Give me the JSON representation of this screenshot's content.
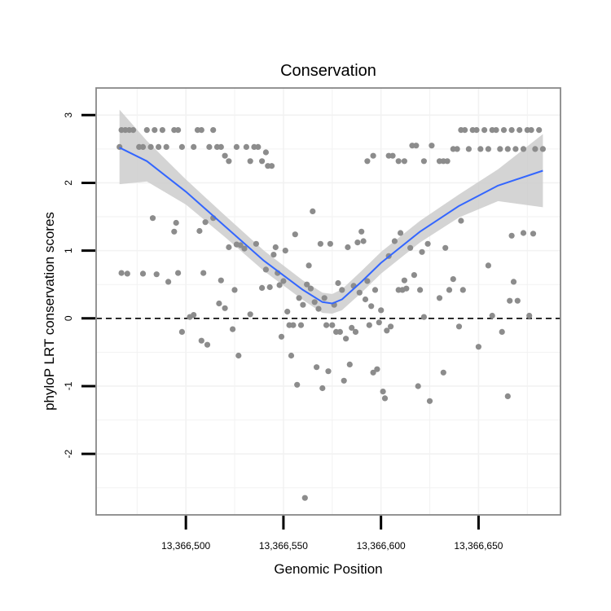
{
  "chart_data": {
    "type": "scatter",
    "title": "Conservation",
    "xlabel": "Genomic Position",
    "ylabel": "phyloP LRT conservation scores",
    "xlim": [
      13366454,
      13366692
    ],
    "ylim": [
      -2.9,
      3.4
    ],
    "x_ticks": [
      13366500,
      13366550,
      13366600,
      13366650
    ],
    "x_tick_labels": [
      "13,366,500",
      "13,366,550",
      "13,366,600",
      "13,366,650"
    ],
    "y_ticks": [
      -2,
      -1,
      0,
      1,
      2,
      3
    ],
    "y_tick_labels": [
      "-2",
      "-1",
      "0",
      "1",
      "2",
      "3"
    ],
    "reference_line": {
      "y": 0,
      "style": "dashed"
    },
    "colors": {
      "points": "#8c8c8c",
      "smooth_line": "#3366ff",
      "confidence_band": "#cccccc",
      "reference_line": "#000000",
      "panel_border": "#888888",
      "grid": "#f2f2f2"
    },
    "series": [
      {
        "name": "scores",
        "kind": "points",
        "points": [
          [
            13366466,
            2.53
          ],
          [
            13366467,
            2.78
          ],
          [
            13366469,
            2.78
          ],
          [
            13366471,
            2.78
          ],
          [
            13366473,
            2.78
          ],
          [
            13366476,
            2.53
          ],
          [
            13366478,
            2.53
          ],
          [
            13366480,
            2.78
          ],
          [
            13366482,
            2.53
          ],
          [
            13366484,
            2.78
          ],
          [
            13366486,
            2.53
          ],
          [
            13366488,
            2.78
          ],
          [
            13366490,
            2.53
          ],
          [
            13366494,
            2.78
          ],
          [
            13366496,
            2.78
          ],
          [
            13366498,
            2.53
          ],
          [
            13366504,
            2.53
          ],
          [
            13366506,
            2.78
          ],
          [
            13366508,
            2.78
          ],
          [
            13366512,
            2.53
          ],
          [
            13366514,
            2.78
          ],
          [
            13366516,
            2.53
          ],
          [
            13366518,
            2.53
          ],
          [
            13366520,
            2.4
          ],
          [
            13366522,
            2.32
          ],
          [
            13366526,
            2.53
          ],
          [
            13366531,
            2.53
          ],
          [
            13366533,
            2.32
          ],
          [
            13366535,
            2.53
          ],
          [
            13366537,
            2.53
          ],
          [
            13366539,
            2.32
          ],
          [
            13366541,
            2.45
          ],
          [
            13366542,
            2.25
          ],
          [
            13366544,
            2.25
          ],
          [
            13366467,
            0.67
          ],
          [
            13366470,
            0.66
          ],
          [
            13366478,
            0.66
          ],
          [
            13366483,
            1.48
          ],
          [
            13366485,
            0.65
          ],
          [
            13366491,
            0.54
          ],
          [
            13366494,
            1.28
          ],
          [
            13366495,
            1.41
          ],
          [
            13366496,
            0.67
          ],
          [
            13366498,
            -0.2
          ],
          [
            13366502,
            0.02
          ],
          [
            13366504,
            0.05
          ],
          [
            13366507,
            1.29
          ],
          [
            13366508,
            -0.33
          ],
          [
            13366509,
            0.67
          ],
          [
            13366510,
            1.42
          ],
          [
            13366511,
            -0.39
          ],
          [
            13366514,
            1.48
          ],
          [
            13366517,
            0.22
          ],
          [
            13366518,
            0.56
          ],
          [
            13366520,
            0.15
          ],
          [
            13366522,
            1.05
          ],
          [
            13366524,
            -0.16
          ],
          [
            13366525,
            0.42
          ],
          [
            13366526,
            1.09
          ],
          [
            13366527,
            -0.55
          ],
          [
            13366528,
            1.08
          ],
          [
            13366530,
            1.03
          ],
          [
            13366533,
            0.06
          ],
          [
            13366536,
            1.1
          ],
          [
            13366539,
            0.45
          ],
          [
            13366541,
            0.72
          ],
          [
            13366543,
            0.46
          ],
          [
            13366545,
            0.94
          ],
          [
            13366546,
            1.05
          ],
          [
            13366547,
            0.67
          ],
          [
            13366548,
            0.49
          ],
          [
            13366549,
            -0.27
          ],
          [
            13366550,
            0.55
          ],
          [
            13366551,
            1.0
          ],
          [
            13366552,
            0.1
          ],
          [
            13366553,
            -0.1
          ],
          [
            13366554,
            -0.55
          ],
          [
            13366555,
            -0.1
          ],
          [
            13366556,
            1.24
          ],
          [
            13366557,
            -0.98
          ],
          [
            13366558,
            0.3
          ],
          [
            13366559,
            -0.1
          ],
          [
            13366560,
            0.2
          ],
          [
            13366561,
            -2.65
          ],
          [
            13366562,
            0.5
          ],
          [
            13366563,
            0.78
          ],
          [
            13366564,
            0.44
          ],
          [
            13366565,
            1.58
          ],
          [
            13366566,
            0.24
          ],
          [
            13366567,
            -0.72
          ],
          [
            13366568,
            0.14
          ],
          [
            13366569,
            1.1
          ],
          [
            13366570,
            -1.03
          ],
          [
            13366571,
            0.3
          ],
          [
            13366572,
            -0.1
          ],
          [
            13366573,
            -0.78
          ],
          [
            13366574,
            1.1
          ],
          [
            13366575,
            -0.1
          ],
          [
            13366576,
            0.2
          ],
          [
            13366577,
            -0.2
          ],
          [
            13366578,
            0.52
          ],
          [
            13366579,
            -0.2
          ],
          [
            13366580,
            0.42
          ],
          [
            13366581,
            -0.92
          ],
          [
            13366582,
            -0.3
          ],
          [
            13366583,
            1.05
          ],
          [
            13366584,
            -0.68
          ],
          [
            13366585,
            -0.14
          ],
          [
            13366586,
            0.48
          ],
          [
            13366587,
            -0.2
          ],
          [
            13366588,
            1.12
          ],
          [
            13366589,
            0.38
          ],
          [
            13366590,
            1.28
          ],
          [
            13366591,
            1.14
          ],
          [
            13366592,
            0.28
          ],
          [
            13366593,
            0.55
          ],
          [
            13366594,
            -0.1
          ],
          [
            13366595,
            0.18
          ],
          [
            13366596,
            -0.8
          ],
          [
            13366597,
            0.42
          ],
          [
            13366598,
            -0.75
          ],
          [
            13366599,
            -0.06
          ],
          [
            13366600,
            0.12
          ],
          [
            13366601,
            -1.08
          ],
          [
            13366602,
            -1.18
          ],
          [
            13366603,
            -0.18
          ],
          [
            13366604,
            0.92
          ],
          [
            13366605,
            -0.12
          ],
          [
            13366607,
            1.14
          ],
          [
            13366609,
            0.42
          ],
          [
            13366610,
            1.26
          ],
          [
            13366611,
            0.42
          ],
          [
            13366612,
            0.56
          ],
          [
            13366613,
            0.44
          ],
          [
            13366615,
            1.04
          ],
          [
            13366617,
            0.64
          ],
          [
            13366619,
            -1.0
          ],
          [
            13366620,
            0.42
          ],
          [
            13366621,
            0.98
          ],
          [
            13366622,
            0.02
          ],
          [
            13366624,
            1.1
          ],
          [
            13366625,
            -1.22
          ],
          [
            13366630,
            0.3
          ],
          [
            13366632,
            -0.8
          ],
          [
            13366633,
            1.04
          ],
          [
            13366635,
            0.42
          ],
          [
            13366637,
            0.58
          ],
          [
            13366640,
            -0.12
          ],
          [
            13366641,
            1.44
          ],
          [
            13366642,
            0.42
          ],
          [
            13366650,
            -0.42
          ],
          [
            13366655,
            0.78
          ],
          [
            13366657,
            0.04
          ],
          [
            13366662,
            -0.2
          ],
          [
            13366665,
            -1.15
          ],
          [
            13366666,
            0.26
          ],
          [
            13366667,
            1.22
          ],
          [
            13366668,
            0.54
          ],
          [
            13366670,
            0.26
          ],
          [
            13366673,
            1.26
          ],
          [
            13366676,
            0.04
          ],
          [
            13366678,
            1.25
          ],
          [
            13366593,
            2.32
          ],
          [
            13366596,
            2.4
          ],
          [
            13366604,
            2.4
          ],
          [
            13366606,
            2.4
          ],
          [
            13366609,
            2.32
          ],
          [
            13366612,
            2.32
          ],
          [
            13366616,
            2.55
          ],
          [
            13366618,
            2.55
          ],
          [
            13366622,
            2.32
          ],
          [
            13366626,
            2.55
          ],
          [
            13366630,
            2.32
          ],
          [
            13366632,
            2.32
          ],
          [
            13366634,
            2.32
          ],
          [
            13366637,
            2.5
          ],
          [
            13366639,
            2.5
          ],
          [
            13366641,
            2.78
          ],
          [
            13366643,
            2.78
          ],
          [
            13366645,
            2.5
          ],
          [
            13366647,
            2.78
          ],
          [
            13366649,
            2.78
          ],
          [
            13366651,
            2.5
          ],
          [
            13366653,
            2.78
          ],
          [
            13366655,
            2.5
          ],
          [
            13366657,
            2.78
          ],
          [
            13366659,
            2.78
          ],
          [
            13366661,
            2.5
          ],
          [
            13366663,
            2.78
          ],
          [
            13366665,
            2.5
          ],
          [
            13366667,
            2.78
          ],
          [
            13366669,
            2.5
          ],
          [
            13366671,
            2.78
          ],
          [
            13366673,
            2.5
          ],
          [
            13366675,
            2.78
          ],
          [
            13366677,
            2.78
          ],
          [
            13366679,
            2.5
          ],
          [
            13366681,
            2.78
          ],
          [
            13366683,
            2.5
          ]
        ]
      },
      {
        "name": "loess fit",
        "kind": "line",
        "points": [
          [
            13366466,
            2.52
          ],
          [
            13366480,
            2.32
          ],
          [
            13366500,
            1.87
          ],
          [
            13366520,
            1.36
          ],
          [
            13366540,
            0.85
          ],
          [
            13366560,
            0.42
          ],
          [
            13366570,
            0.24
          ],
          [
            13366575,
            0.22
          ],
          [
            13366580,
            0.28
          ],
          [
            13366590,
            0.54
          ],
          [
            13366600,
            0.82
          ],
          [
            13366620,
            1.28
          ],
          [
            13366640,
            1.66
          ],
          [
            13366660,
            1.96
          ],
          [
            13366683,
            2.18
          ]
        ]
      },
      {
        "name": "95% confidence band",
        "kind": "band",
        "upper": [
          [
            13366466,
            3.08
          ],
          [
            13366480,
            2.62
          ],
          [
            13366500,
            2.05
          ],
          [
            13366520,
            1.52
          ],
          [
            13366540,
            1.0
          ],
          [
            13366560,
            0.56
          ],
          [
            13366570,
            0.38
          ],
          [
            13366575,
            0.36
          ],
          [
            13366580,
            0.43
          ],
          [
            13366590,
            0.7
          ],
          [
            13366600,
            0.98
          ],
          [
            13366620,
            1.44
          ],
          [
            13366640,
            1.83
          ],
          [
            13366660,
            2.2
          ],
          [
            13366683,
            2.72
          ]
        ],
        "lower": [
          [
            13366466,
            1.98
          ],
          [
            13366480,
            2.02
          ],
          [
            13366500,
            1.68
          ],
          [
            13366520,
            1.2
          ],
          [
            13366540,
            0.7
          ],
          [
            13366560,
            0.27
          ],
          [
            13366570,
            0.08
          ],
          [
            13366575,
            0.07
          ],
          [
            13366580,
            0.12
          ],
          [
            13366590,
            0.38
          ],
          [
            13366600,
            0.66
          ],
          [
            13366620,
            1.12
          ],
          [
            13366640,
            1.49
          ],
          [
            13366660,
            1.73
          ],
          [
            13366683,
            1.64
          ]
        ]
      }
    ]
  }
}
